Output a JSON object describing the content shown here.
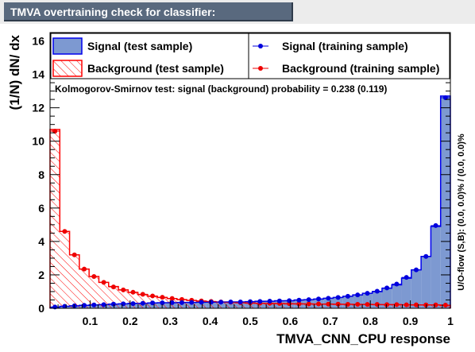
{
  "window": {
    "title": "TMVA overtraining check for classifier: TMVA_CNN_CPU"
  },
  "colors": {
    "signal_fill": "#7d99d1",
    "signal_line": "#0000ee",
    "background_hatch": "#ff0000",
    "frame": "#000000",
    "title_bg": "#59697e"
  },
  "chart_data": {
    "type": "bar",
    "xlabel": "TMVA_CNN_CPU response",
    "ylabel": "(1/N) dN/ dx",
    "xlim": [
      0,
      1
    ],
    "ylim": [
      0,
      16.5
    ],
    "bin_width": 0.025,
    "xticks": [
      "0.1",
      "0.2",
      "0.3",
      "0.4",
      "0.5",
      "0.6",
      "0.7",
      "0.8",
      "0.9",
      "1"
    ],
    "yticks": [
      "0",
      "2",
      "4",
      "6",
      "8",
      "10",
      "12",
      "14",
      "16"
    ],
    "ks_text": "Kolmogorov-Smirnov test: signal (background) probability = 0.238 (0.119)",
    "overflow_text": "U/O-flow (S,B): (0.0, 0.0)% / (0.0, 0.0)%",
    "legend": {
      "signal_test": "Signal (test sample)",
      "background_test": "Background (test sample)",
      "signal_train": "Signal (training sample)",
      "background_train": "Background (training sample)"
    },
    "series": [
      {
        "name": "Signal (test sample)",
        "style": "filled-histogram",
        "values": [
          0.05,
          0.12,
          0.15,
          0.18,
          0.2,
          0.22,
          0.25,
          0.27,
          0.3,
          0.3,
          0.32,
          0.33,
          0.33,
          0.35,
          0.35,
          0.36,
          0.37,
          0.38,
          0.38,
          0.38,
          0.4,
          0.42,
          0.42,
          0.45,
          0.45,
          0.5,
          0.52,
          0.55,
          0.6,
          0.65,
          0.72,
          0.8,
          0.9,
          1.0,
          1.2,
          1.4,
          1.8,
          2.3,
          3.1,
          4.9,
          12.7
        ]
      },
      {
        "name": "Background (test sample)",
        "style": "hatched-histogram",
        "values": [
          10.7,
          4.6,
          3.2,
          2.35,
          1.9,
          1.55,
          1.3,
          1.1,
          0.95,
          0.82,
          0.72,
          0.65,
          0.58,
          0.52,
          0.47,
          0.43,
          0.4,
          0.37,
          0.35,
          0.33,
          0.31,
          0.3,
          0.29,
          0.28,
          0.27,
          0.26,
          0.26,
          0.25,
          0.25,
          0.24,
          0.24,
          0.23,
          0.23,
          0.22,
          0.22,
          0.22,
          0.21,
          0.2,
          0.2,
          0.2,
          0.18
        ]
      },
      {
        "name": "Signal (training sample)",
        "style": "points",
        "values": [
          0.08,
          0.12,
          0.15,
          0.18,
          0.2,
          0.22,
          0.25,
          0.27,
          0.28,
          0.3,
          0.32,
          0.33,
          0.34,
          0.34,
          0.35,
          0.36,
          0.37,
          0.37,
          0.38,
          0.38,
          0.4,
          0.41,
          0.43,
          0.44,
          0.46,
          0.49,
          0.52,
          0.56,
          0.6,
          0.65,
          0.72,
          0.8,
          0.9,
          1.02,
          1.22,
          1.45,
          1.85,
          2.3,
          3.1,
          4.95,
          12.6
        ]
      },
      {
        "name": "Background (training sample)",
        "style": "points",
        "values": [
          10.6,
          4.6,
          3.2,
          2.35,
          1.9,
          1.55,
          1.28,
          1.1,
          0.96,
          0.84,
          0.74,
          0.66,
          0.59,
          0.53,
          0.48,
          0.44,
          0.41,
          0.38,
          0.36,
          0.34,
          0.32,
          0.31,
          0.3,
          0.29,
          0.28,
          0.27,
          0.26,
          0.26,
          0.25,
          0.25,
          0.24,
          0.24,
          0.23,
          0.23,
          0.22,
          0.22,
          0.21,
          0.21,
          0.2,
          0.2,
          0.19
        ]
      }
    ]
  }
}
